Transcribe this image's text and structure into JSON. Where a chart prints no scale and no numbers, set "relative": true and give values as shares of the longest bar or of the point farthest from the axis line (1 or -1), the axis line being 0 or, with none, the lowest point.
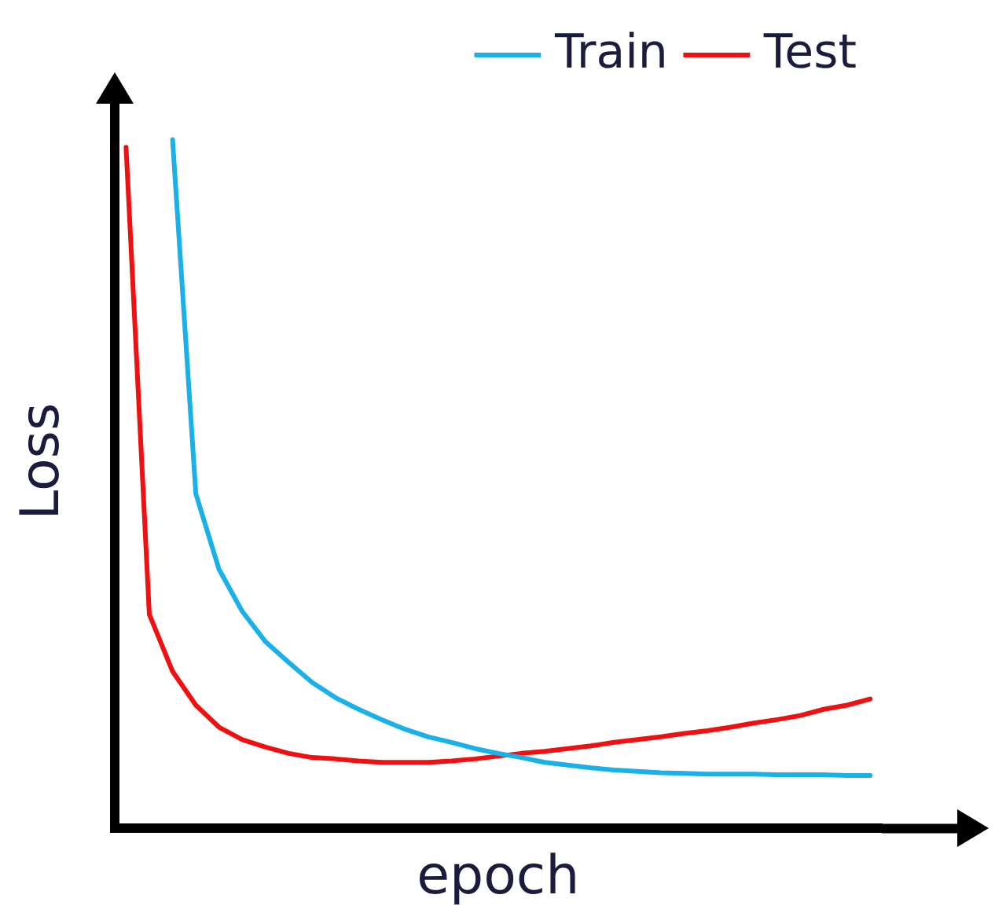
{
  "chart_data": {
    "type": "line",
    "relative": true,
    "xlabel": "epoch",
    "ylabel": "Loss",
    "legend": "top right",
    "marker": "none",
    "line_style": "solid",
    "grid": false,
    "categories": [
      null,
      null,
      null,
      null,
      null,
      null,
      null,
      null,
      null,
      null,
      null,
      null,
      null,
      null,
      null,
      null,
      null,
      null,
      null,
      null,
      null,
      null,
      null,
      null,
      null,
      null,
      null,
      null,
      null,
      null,
      null,
      null,
      null
    ],
    "series": [
      {
        "name": "Train",
        "color": "#1ab0e8",
        "values": [
          null,
          null,
          1.0,
          0.486,
          0.376,
          0.315,
          0.271,
          0.241,
          0.212,
          0.19,
          0.173,
          0.158,
          0.144,
          0.133,
          0.125,
          0.116,
          0.109,
          0.103,
          0.096,
          0.092,
          0.088,
          0.085,
          0.083,
          0.081,
          0.08,
          0.079,
          0.079,
          0.079,
          0.078,
          0.078,
          0.078,
          0.077,
          0.077
        ]
      },
      {
        "name": "Test",
        "color": "#f01010",
        "values": [
          0.989,
          0.311,
          0.228,
          0.179,
          0.147,
          0.129,
          0.118,
          0.109,
          0.103,
          0.101,
          0.098,
          0.096,
          0.096,
          0.096,
          0.098,
          0.101,
          0.105,
          0.109,
          0.112,
          0.116,
          0.12,
          0.125,
          0.129,
          0.133,
          0.138,
          0.142,
          0.147,
          0.153,
          0.158,
          0.164,
          0.173,
          0.179,
          0.188
        ]
      }
    ]
  }
}
